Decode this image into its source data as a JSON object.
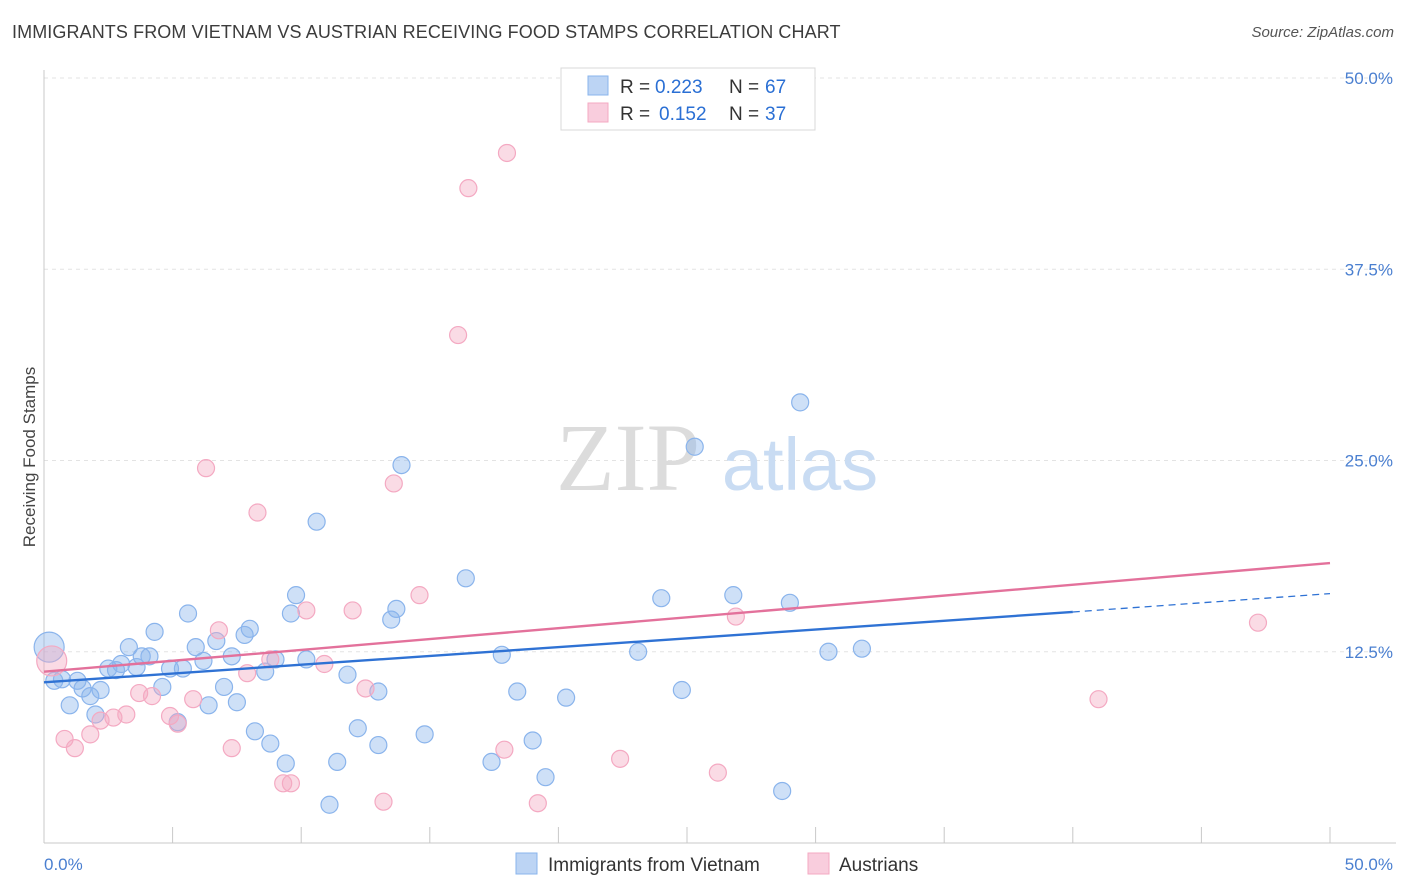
{
  "title": "IMMIGRANTS FROM VIETNAM VS AUSTRIAN RECEIVING FOOD STAMPS CORRELATION CHART",
  "source": "Source: ZipAtlas.com",
  "watermark": {
    "zip": "ZIP",
    "atlas": "atlas"
  },
  "chart_data": {
    "type": "scatter",
    "title": "IMMIGRANTS FROM VIETNAM VS AUSTRIAN RECEIVING FOOD STAMPS CORRELATION CHART",
    "xlabel": "",
    "ylabel": "Receiving Food Stamps",
    "xlim": [
      0,
      50
    ],
    "ylim": [
      0,
      50
    ],
    "x_tick_labels": [
      {
        "value": 0,
        "label": "0.0%"
      },
      {
        "value": 50,
        "label": "50.0%"
      }
    ],
    "y_tick_labels": [
      {
        "value": 12.5,
        "label": "12.5%"
      },
      {
        "value": 25,
        "label": "25.0%"
      },
      {
        "value": 37.5,
        "label": "37.5%"
      },
      {
        "value": 50,
        "label": "50.0%"
      }
    ],
    "legend": [
      {
        "r_label": "R =",
        "r": "0.223",
        "n_label": "N =",
        "n": "67"
      },
      {
        "r_label": "R =",
        "r": "0.152",
        "n_label": "N =",
        "n": "37"
      }
    ],
    "series": [
      {
        "name": "Immigrants from Vietnam",
        "color": "#8ab4ec",
        "line_color": "#2f72d4",
        "trend": {
          "x0": 0,
          "y0": 10.5,
          "x1": 40,
          "y1": 15.1,
          "dash_to_x": 50,
          "dash_to_y": 16.3
        },
        "points": [
          [
            0.2,
            12.8
          ],
          [
            0.4,
            10.6
          ],
          [
            0.7,
            10.7
          ],
          [
            1.0,
            9.0
          ],
          [
            1.3,
            10.6
          ],
          [
            1.5,
            10.1
          ],
          [
            1.8,
            9.6
          ],
          [
            2.0,
            8.4
          ],
          [
            2.2,
            10.0
          ],
          [
            2.5,
            11.4
          ],
          [
            2.8,
            11.3
          ],
          [
            3.0,
            11.7
          ],
          [
            3.3,
            12.8
          ],
          [
            3.6,
            11.5
          ],
          [
            3.8,
            12.2
          ],
          [
            4.1,
            12.2
          ],
          [
            4.3,
            13.8
          ],
          [
            4.6,
            10.2
          ],
          [
            4.9,
            11.4
          ],
          [
            5.2,
            7.9
          ],
          [
            5.4,
            11.4
          ],
          [
            5.6,
            15.0
          ],
          [
            5.9,
            12.8
          ],
          [
            6.2,
            11.9
          ],
          [
            6.4,
            9.0
          ],
          [
            6.7,
            13.2
          ],
          [
            7.0,
            10.2
          ],
          [
            7.3,
            12.2
          ],
          [
            7.5,
            9.2
          ],
          [
            7.8,
            13.6
          ],
          [
            8.0,
            14.0
          ],
          [
            8.2,
            7.3
          ],
          [
            8.6,
            11.2
          ],
          [
            8.8,
            6.5
          ],
          [
            9.0,
            12.0
          ],
          [
            9.4,
            5.2
          ],
          [
            9.6,
            15.0
          ],
          [
            9.8,
            16.2
          ],
          [
            10.2,
            12.0
          ],
          [
            10.6,
            21.0
          ],
          [
            11.1,
            2.5
          ],
          [
            11.4,
            5.3
          ],
          [
            11.8,
            11.0
          ],
          [
            12.2,
            7.5
          ],
          [
            13.0,
            6.4
          ],
          [
            13.0,
            9.9
          ],
          [
            13.5,
            14.6
          ],
          [
            13.7,
            15.3
          ],
          [
            13.9,
            24.7
          ],
          [
            14.8,
            7.1
          ],
          [
            16.4,
            17.3
          ],
          [
            17.4,
            5.3
          ],
          [
            17.8,
            12.3
          ],
          [
            18.4,
            9.9
          ],
          [
            19.0,
            6.7
          ],
          [
            19.5,
            4.3
          ],
          [
            20.3,
            9.5
          ],
          [
            23.1,
            12.5
          ],
          [
            24.0,
            16.0
          ],
          [
            24.8,
            10.0
          ],
          [
            25.3,
            25.9
          ],
          [
            26.8,
            16.2
          ],
          [
            28.7,
            3.4
          ],
          [
            29.0,
            15.7
          ],
          [
            29.4,
            28.8
          ],
          [
            30.5,
            12.5
          ],
          [
            31.8,
            12.7
          ]
        ]
      },
      {
        "name": "Austrians",
        "color": "#f4a9c2",
        "line_color": "#e3719b",
        "trend": {
          "x0": 0,
          "y0": 11.2,
          "x1": 50,
          "y1": 18.3
        },
        "points": [
          [
            0.3,
            11.9
          ],
          [
            0.8,
            6.8
          ],
          [
            1.2,
            6.2
          ],
          [
            1.8,
            7.1
          ],
          [
            2.2,
            8.0
          ],
          [
            2.7,
            8.2
          ],
          [
            3.2,
            8.4
          ],
          [
            3.7,
            9.8
          ],
          [
            4.2,
            9.6
          ],
          [
            4.9,
            8.3
          ],
          [
            5.2,
            7.8
          ],
          [
            5.8,
            9.4
          ],
          [
            6.3,
            24.5
          ],
          [
            6.8,
            13.9
          ],
          [
            7.3,
            6.2
          ],
          [
            7.9,
            11.1
          ],
          [
            8.3,
            21.6
          ],
          [
            8.8,
            12.0
          ],
          [
            9.3,
            3.9
          ],
          [
            9.6,
            3.9
          ],
          [
            10.2,
            15.2
          ],
          [
            10.9,
            11.7
          ],
          [
            12.0,
            15.2
          ],
          [
            12.5,
            10.1
          ],
          [
            13.2,
            2.7
          ],
          [
            13.6,
            23.5
          ],
          [
            14.6,
            16.2
          ],
          [
            16.1,
            33.2
          ],
          [
            16.5,
            42.8
          ],
          [
            17.9,
            6.1
          ],
          [
            18.0,
            45.1
          ],
          [
            19.2,
            2.6
          ],
          [
            22.4,
            5.5
          ],
          [
            26.2,
            4.6
          ],
          [
            26.9,
            14.8
          ],
          [
            41.0,
            9.4
          ],
          [
            47.2,
            14.4
          ]
        ]
      }
    ]
  }
}
